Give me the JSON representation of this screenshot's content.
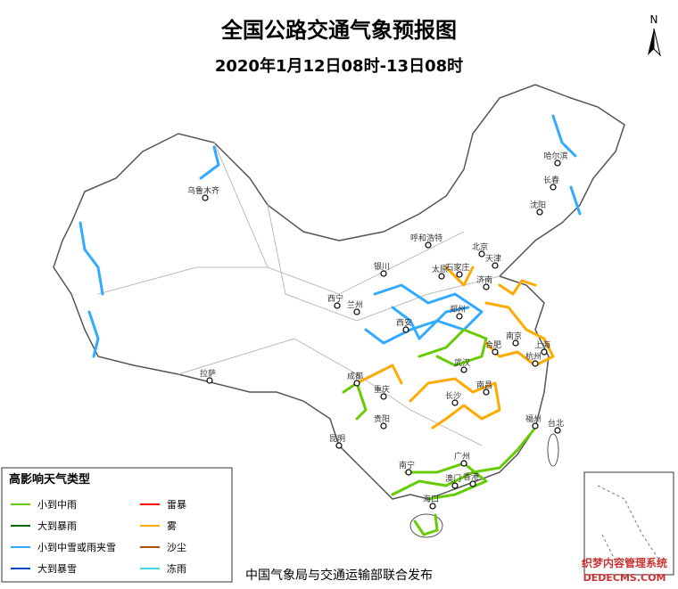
{
  "header": {
    "title": "全国公路交通气象预报图",
    "subtitle": "2020年1月12日08时-13日08时",
    "north": "N"
  },
  "legend": {
    "title": "高影响天气类型",
    "items": [
      {
        "label": "小到中雨",
        "color": "#66cc00"
      },
      {
        "label": "大到暴雨",
        "color": "#006600"
      },
      {
        "label": "小到中雪或雨夹雪",
        "color": "#33aaff"
      },
      {
        "label": "大到暴雪",
        "color": "#0044cc"
      },
      {
        "label": "雷暴",
        "color": "#ff0000"
      },
      {
        "label": "雾",
        "color": "#ffaa00"
      },
      {
        "label": "沙尘",
        "color": "#aa5500"
      },
      {
        "label": "冻雨",
        "color": "#33dddd"
      }
    ]
  },
  "cities": [
    "乌鲁木齐",
    "哈尔滨",
    "长春",
    "沈阳",
    "呼和浩特",
    "北京",
    "天津",
    "石家庄",
    "太原",
    "银川",
    "济南",
    "西宁",
    "兰州",
    "郑州",
    "西安",
    "南京",
    "合肥",
    "上海",
    "杭州",
    "武汉",
    "成都",
    "重庆",
    "拉萨",
    "长沙",
    "南昌",
    "贵阳",
    "福州",
    "台北",
    "昆明",
    "南宁",
    "广州",
    "澳门",
    "香港",
    "海口"
  ],
  "footer": "中国气象局与交通运输部联合发布",
  "watermark": {
    "line1": "织梦内容管理系统",
    "line2": "DEDECMS.COM"
  }
}
